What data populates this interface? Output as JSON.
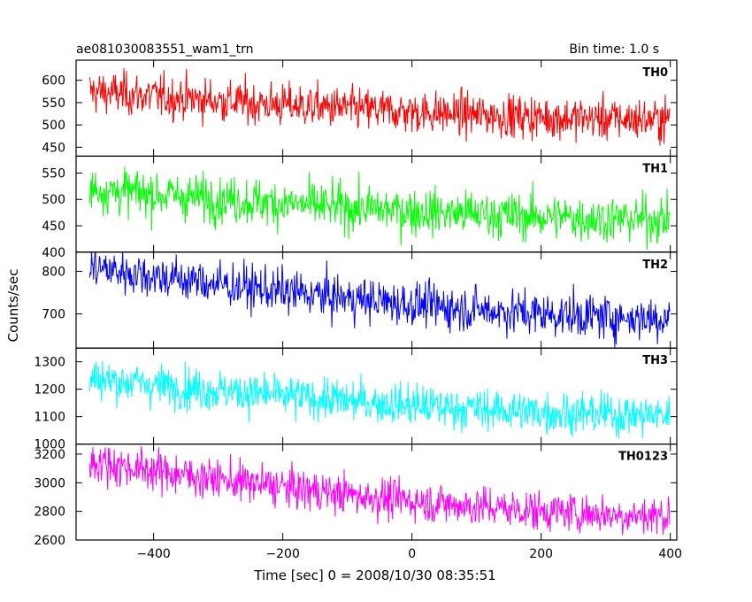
{
  "chart_data": {
    "type": "line",
    "title_left": "ae081030083551_wam1_trn",
    "title_right": "Bin time: 1.0 s",
    "xlabel": "Time [sec] 0 = 2008/10/30 08:35:51",
    "ylabel": "Counts/sec",
    "xlim": [
      -520,
      410
    ],
    "x_ticks": [
      -400,
      -200,
      0,
      200,
      400
    ],
    "x_range": [
      -499,
      399
    ],
    "x_step": 1,
    "panels": [
      {
        "name": "TH0",
        "color": "#ff0000",
        "ylim": [
          430,
          645
        ],
        "y_ticks": [
          450,
          500,
          550,
          600
        ],
        "trend_start": 575,
        "trend_end": 512,
        "noise_sd": 24,
        "approx_values": [
          {
            "x": -480,
            "y": 575
          },
          {
            "x": -400,
            "y": 565
          },
          {
            "x": -300,
            "y": 552
          },
          {
            "x": -200,
            "y": 542
          },
          {
            "x": -100,
            "y": 532
          },
          {
            "x": 0,
            "y": 525
          },
          {
            "x": 100,
            "y": 520
          },
          {
            "x": 200,
            "y": 516
          },
          {
            "x": 300,
            "y": 513
          },
          {
            "x": 390,
            "y": 512
          }
        ]
      },
      {
        "name": "TH1",
        "color": "#00ff00",
        "ylim": [
          400,
          582
        ],
        "y_ticks": [
          400,
          450,
          500,
          550
        ],
        "trend_start": 520,
        "trend_end": 462,
        "noise_sd": 22,
        "approx_values": [
          {
            "x": -480,
            "y": 520
          },
          {
            "x": -400,
            "y": 510
          },
          {
            "x": -300,
            "y": 500
          },
          {
            "x": -200,
            "y": 490
          },
          {
            "x": -100,
            "y": 482
          },
          {
            "x": 0,
            "y": 475
          },
          {
            "x": 100,
            "y": 470
          },
          {
            "x": 200,
            "y": 467
          },
          {
            "x": 300,
            "y": 464
          },
          {
            "x": 390,
            "y": 462
          }
        ]
      },
      {
        "name": "TH2",
        "color": "#0000ff",
        "ylim": [
          620,
          845
        ],
        "y_ticks": [
          700,
          800
        ],
        "trend_start": 810,
        "trend_end": 690,
        "noise_sd": 26,
        "approx_values": [
          {
            "x": -480,
            "y": 810
          },
          {
            "x": -400,
            "y": 795
          },
          {
            "x": -300,
            "y": 775
          },
          {
            "x": -200,
            "y": 755
          },
          {
            "x": -100,
            "y": 738
          },
          {
            "x": 0,
            "y": 722
          },
          {
            "x": 100,
            "y": 710
          },
          {
            "x": 200,
            "y": 700
          },
          {
            "x": 300,
            "y": 694
          },
          {
            "x": 390,
            "y": 690
          }
        ]
      },
      {
        "name": "TH3",
        "color": "#00ffff",
        "ylim": [
          1000,
          1350
        ],
        "y_ticks": [
          1000,
          1100,
          1200,
          1300
        ],
        "trend_start": 1240,
        "trend_end": 1105,
        "noise_sd": 38,
        "approx_values": [
          {
            "x": -480,
            "y": 1240
          },
          {
            "x": -400,
            "y": 1215
          },
          {
            "x": -300,
            "y": 1195
          },
          {
            "x": -200,
            "y": 1170
          },
          {
            "x": -100,
            "y": 1150
          },
          {
            "x": 0,
            "y": 1135
          },
          {
            "x": 100,
            "y": 1122
          },
          {
            "x": 200,
            "y": 1115
          },
          {
            "x": 300,
            "y": 1110
          },
          {
            "x": 390,
            "y": 1105
          }
        ]
      },
      {
        "name": "TH0123",
        "color": "#ff00ff",
        "ylim": [
          2600,
          3270
        ],
        "y_ticks": [
          2600,
          2800,
          3000,
          3200
        ],
        "trend_start": 3150,
        "trend_end": 2770,
        "noise_sd": 70,
        "approx_values": [
          {
            "x": -480,
            "y": 3150
          },
          {
            "x": -400,
            "y": 3080
          },
          {
            "x": -300,
            "y": 3010
          },
          {
            "x": -200,
            "y": 2950
          },
          {
            "x": -100,
            "y": 2890
          },
          {
            "x": 0,
            "y": 2850
          },
          {
            "x": 100,
            "y": 2820
          },
          {
            "x": 200,
            "y": 2800
          },
          {
            "x": 300,
            "y": 2785
          },
          {
            "x": 390,
            "y": 2770
          }
        ]
      }
    ]
  }
}
